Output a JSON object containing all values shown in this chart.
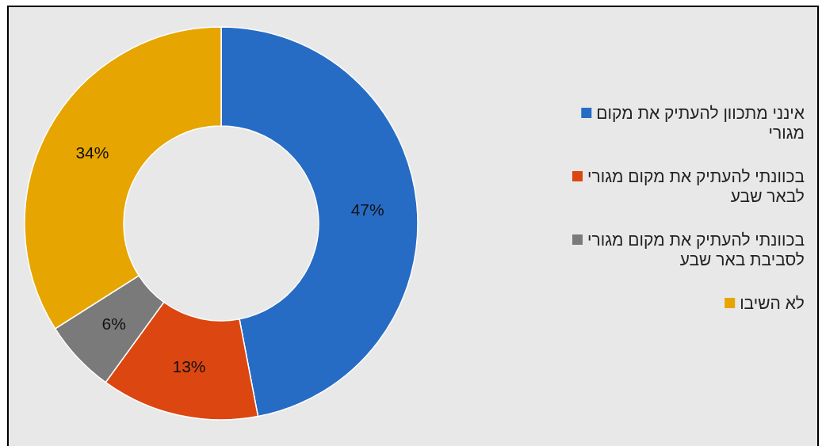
{
  "chart_data": {
    "type": "donut",
    "categories": [
      "אינני מתכוון להעתיק את מקום מגורי",
      "בכוונתי להעתיק את מקום מגורי לבאר שבע",
      "בכוונתי להעתיק את מקום מגורי לסביבת באר שבע",
      "לא השיבו"
    ],
    "values": [
      47,
      13,
      6,
      34
    ],
    "colors": [
      "#276cc4",
      "#dc4611",
      "#7a7a7a",
      "#e6a500"
    ],
    "value_labels": [
      "47%",
      "13%",
      "6%",
      "34%"
    ],
    "legend": "right"
  }
}
